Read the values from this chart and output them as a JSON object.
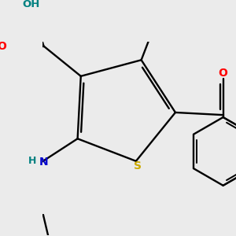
{
  "bg_color": "#ebebeb",
  "atom_colors": {
    "C": "#000000",
    "O": "#ff0000",
    "N": "#0000cc",
    "S": "#ccaa00",
    "H": "#008080"
  },
  "figsize": [
    3.0,
    3.0
  ],
  "dpi": 100
}
